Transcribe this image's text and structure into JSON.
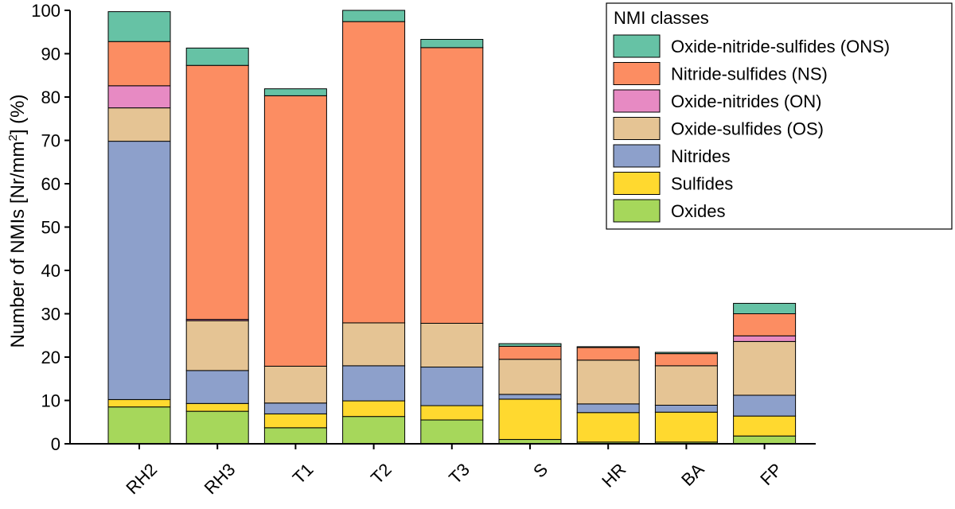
{
  "chart_data": {
    "type": "bar",
    "stacked": true,
    "categories": [
      "RH2",
      "RH3",
      "T1",
      "T2",
      "T3",
      "S",
      "HR",
      "BA",
      "FP"
    ],
    "series": [
      {
        "name": "Oxides",
        "color": "#a6d75b",
        "values": [
          8.5,
          7.5,
          3.7,
          6.3,
          5.5,
          1.0,
          0.4,
          0.4,
          1.8
        ]
      },
      {
        "name": "Sulfides",
        "color": "#ffd92f",
        "values": [
          1.7,
          1.8,
          3.2,
          3.6,
          3.3,
          9.3,
          6.8,
          6.9,
          4.6
        ]
      },
      {
        "name": "Nitrides",
        "color": "#8da0cb",
        "values": [
          59.6,
          7.6,
          2.5,
          8.1,
          8.9,
          1.1,
          2.0,
          1.6,
          4.8
        ]
      },
      {
        "name": "Oxide-sulfides (OS)",
        "color": "#e5c494",
        "values": [
          7.7,
          11.5,
          8.5,
          9.9,
          10.1,
          8.1,
          10.1,
          9.1,
          12.4
        ]
      },
      {
        "name": "Oxide-nitrides (ON)",
        "color": "#e78ac3",
        "values": [
          5.1,
          0.3,
          0,
          0,
          0,
          0,
          0,
          0,
          1.3
        ]
      },
      {
        "name": "Nitride-sulfides (NS)",
        "color": "#fc8d62",
        "values": [
          10.2,
          58.6,
          62.4,
          69.5,
          63.6,
          3.0,
          2.9,
          2.8,
          5.1
        ]
      },
      {
        "name": "Oxide-nitride-sulfides (ONS)",
        "color": "#66c2a5",
        "values": [
          6.9,
          4.0,
          1.6,
          2.6,
          1.9,
          0.6,
          0.2,
          0.3,
          2.4
        ]
      }
    ],
    "title": "",
    "xlabel": "",
    "ylabel": {
      "prefix": "Number of NMIs [Nr/mm",
      "superscript": "2",
      "suffix": "] (%)"
    },
    "ylim": [
      0,
      100
    ],
    "yticks": [
      0,
      10,
      20,
      30,
      40,
      50,
      60,
      70,
      80,
      90,
      100
    ],
    "legend": {
      "title": "NMI classes",
      "position": "top-right",
      "order": [
        "Oxide-nitride-sulfides (ONS)",
        "Nitride-sulfides (NS)",
        "Oxide-nitrides (ON)",
        "Oxide-sulfides (OS)",
        "Nitrides",
        "Sulfides",
        "Oxides"
      ]
    }
  }
}
